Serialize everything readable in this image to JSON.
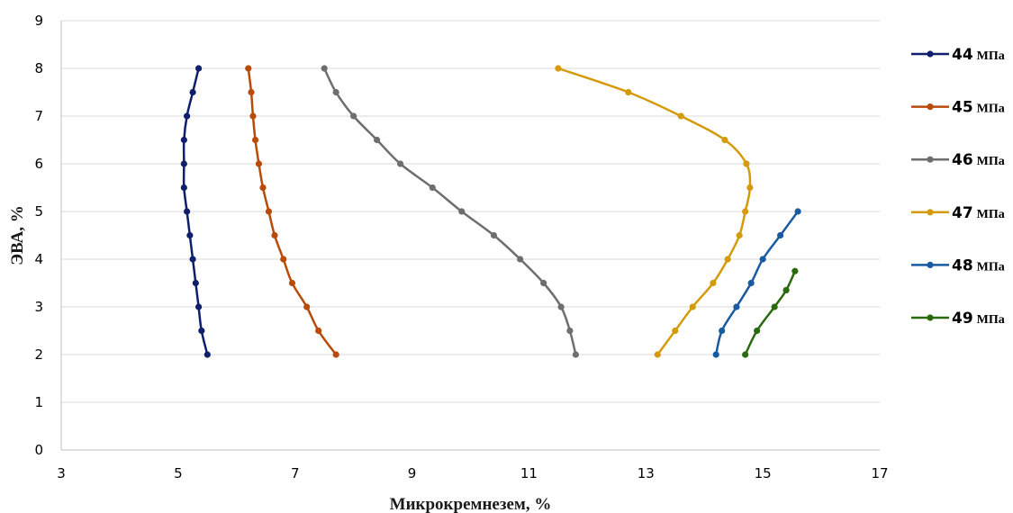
{
  "chart_data": {
    "type": "scatter",
    "xlabel": "Микрокремнезем, %",
    "ylabel": "ЭВА, %",
    "xlim": [
      3,
      17
    ],
    "ylim": [
      0,
      9
    ],
    "xticks": [
      3,
      5,
      7,
      9,
      11,
      13,
      15,
      17
    ],
    "yticks": [
      0,
      1,
      2,
      3,
      4,
      5,
      6,
      7,
      8,
      9
    ],
    "grid": "horizontal",
    "legend_position": "right",
    "series": [
      {
        "name_num": "44",
        "name_unit": "МПа",
        "color": "#0f1f6b",
        "points": [
          [
            5.5,
            2
          ],
          [
            5.4,
            2.5
          ],
          [
            5.35,
            3
          ],
          [
            5.3,
            3.5
          ],
          [
            5.25,
            4
          ],
          [
            5.2,
            4.5
          ],
          [
            5.15,
            5
          ],
          [
            5.1,
            5.5
          ],
          [
            5.1,
            6
          ],
          [
            5.1,
            6.5
          ],
          [
            5.15,
            7
          ],
          [
            5.25,
            7.5
          ],
          [
            5.35,
            8
          ]
        ]
      },
      {
        "name_num": "45",
        "name_unit": "МПа",
        "color": "#b84a0a",
        "points": [
          [
            7.7,
            2
          ],
          [
            7.4,
            2.5
          ],
          [
            7.2,
            3
          ],
          [
            6.95,
            3.5
          ],
          [
            6.8,
            4
          ],
          [
            6.65,
            4.5
          ],
          [
            6.55,
            5
          ],
          [
            6.45,
            5.5
          ],
          [
            6.38,
            6
          ],
          [
            6.32,
            6.5
          ],
          [
            6.28,
            7
          ],
          [
            6.25,
            7.5
          ],
          [
            6.2,
            8
          ]
        ]
      },
      {
        "name_num": "46",
        "name_unit": "МПа",
        "color": "#6e6e6e",
        "points": [
          [
            11.8,
            2
          ],
          [
            11.7,
            2.5
          ],
          [
            11.55,
            3
          ],
          [
            11.25,
            3.5
          ],
          [
            10.85,
            4
          ],
          [
            10.4,
            4.5
          ],
          [
            9.85,
            5
          ],
          [
            9.35,
            5.5
          ],
          [
            8.8,
            6
          ],
          [
            8.4,
            6.5
          ],
          [
            8.0,
            7
          ],
          [
            7.7,
            7.5
          ],
          [
            7.5,
            8
          ]
        ]
      },
      {
        "name_num": "47",
        "name_unit": "МПа",
        "color": "#d49a0a",
        "points": [
          [
            13.2,
            2
          ],
          [
            13.5,
            2.5
          ],
          [
            13.8,
            3
          ],
          [
            14.15,
            3.5
          ],
          [
            14.4,
            4
          ],
          [
            14.6,
            4.5
          ],
          [
            14.7,
            5
          ],
          [
            14.78,
            5.5
          ],
          [
            14.72,
            6
          ],
          [
            14.35,
            6.5
          ],
          [
            13.6,
            7
          ],
          [
            12.7,
            7.5
          ],
          [
            11.5,
            8
          ]
        ]
      },
      {
        "name_num": "48",
        "name_unit": "МПа",
        "color": "#1a5aa0",
        "points": [
          [
            14.2,
            2
          ],
          [
            14.3,
            2.5
          ],
          [
            14.55,
            3
          ],
          [
            14.8,
            3.5
          ],
          [
            15.0,
            4
          ],
          [
            15.3,
            4.5
          ],
          [
            15.6,
            5
          ]
        ]
      },
      {
        "name_num": "49",
        "name_unit": "МПа",
        "color": "#2a6a0e",
        "points": [
          [
            14.7,
            2
          ],
          [
            14.9,
            2.5
          ],
          [
            15.2,
            3
          ],
          [
            15.4,
            3.35
          ],
          [
            15.55,
            3.75
          ]
        ]
      }
    ]
  }
}
